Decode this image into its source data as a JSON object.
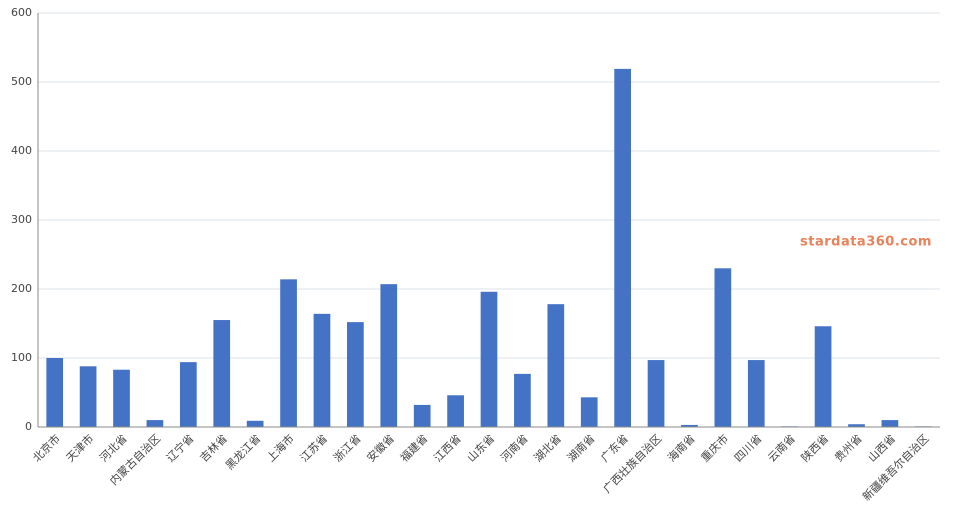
{
  "chart_data": {
    "type": "bar",
    "categories": [
      "北京市",
      "天津市",
      "河北省",
      "内蒙古自治区",
      "辽宁省",
      "吉林省",
      "黑龙江省",
      "上海市",
      "江苏省",
      "浙江省",
      "安徽省",
      "福建省",
      "江西省",
      "山东省",
      "河南省",
      "湖北省",
      "湖南省",
      "广东省",
      "广西壮族自治区",
      "海南省",
      "重庆市",
      "四川省",
      "云南省",
      "陕西省",
      "贵州省",
      "山西省",
      "新疆维吾尔自治区"
    ],
    "values": [
      100,
      88,
      83,
      10,
      94,
      155,
      9,
      214,
      164,
      152,
      207,
      32,
      46,
      196,
      77,
      178,
      43,
      519,
      97,
      3,
      230,
      97,
      1,
      146,
      4,
      10,
      1
    ],
    "color": "#4472c4",
    "ylim": [
      0,
      600
    ],
    "yticks": [
      0,
      100,
      200,
      300,
      400,
      500,
      600
    ],
    "grid": true,
    "watermark": "stardata360.com"
  }
}
